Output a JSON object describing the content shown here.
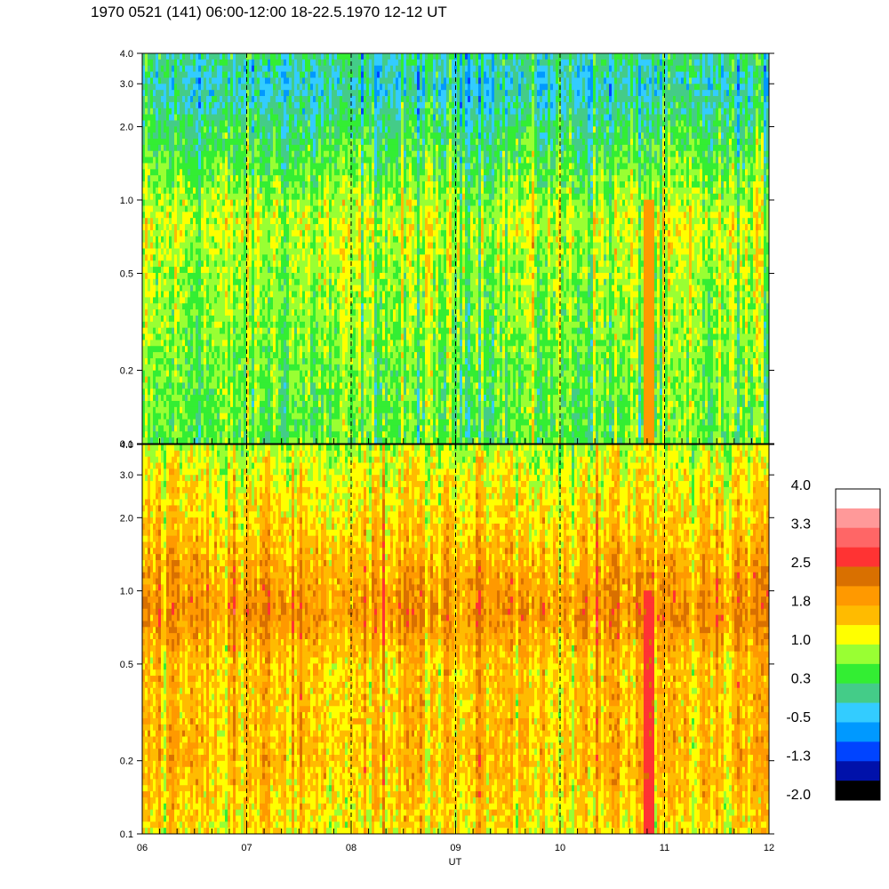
{
  "title": "1970 0521 (141) 06:00-12:00 18-22.5.1970  12-12 UT",
  "chart_data": [
    {
      "type": "heatmap",
      "panel": "upper",
      "x_range": [
        "06",
        "12"
      ],
      "y_scale": "log",
      "ylim": [
        0.1,
        4.0
      ],
      "y_ticks": [
        "0.1",
        "0.2",
        "0.5",
        "1.0",
        "2.0",
        "3.0",
        "4.0"
      ],
      "x_ticks": [
        "06",
        "07",
        "08",
        "09",
        "10",
        "11",
        "12"
      ],
      "xlabel": "",
      "grid": "vertical dashed lines at each hour",
      "profile": [
        {
          "f": 0.1,
          "v": 0.5
        },
        {
          "f": 0.2,
          "v": 0.6
        },
        {
          "f": 0.5,
          "v": 0.8
        },
        {
          "f": 0.8,
          "v": 1.0
        },
        {
          "f": 1.0,
          "v": 0.8
        },
        {
          "f": 2.0,
          "v": 0.2
        },
        {
          "f": 3.0,
          "v": -0.2
        },
        {
          "f": 4.0,
          "v": 0.1
        }
      ],
      "features": [
        {
          "time": "10:50",
          "value": 1.9,
          "note": "orange vertical streak below 1.0"
        }
      ]
    },
    {
      "type": "heatmap",
      "panel": "lower",
      "x_range": [
        "06",
        "12"
      ],
      "y_scale": "log",
      "ylim": [
        0.1,
        4.0
      ],
      "y_ticks": [
        "0.1",
        "0.2",
        "0.5",
        "1.0",
        "2.0",
        "3.0",
        "4.0"
      ],
      "x_ticks": [
        "06",
        "07",
        "08",
        "09",
        "10",
        "11",
        "12"
      ],
      "xlabel": "UT",
      "grid": "vertical dashed lines at each hour",
      "profile": [
        {
          "f": 0.1,
          "v": 1.3
        },
        {
          "f": 0.2,
          "v": 1.6
        },
        {
          "f": 0.5,
          "v": 1.5
        },
        {
          "f": 0.8,
          "v": 2.0
        },
        {
          "f": 1.0,
          "v": 1.9
        },
        {
          "f": 2.0,
          "v": 1.4
        },
        {
          "f": 3.0,
          "v": 1.2
        },
        {
          "f": 4.0,
          "v": 0.9
        }
      ],
      "features": [
        {
          "time": "10:50",
          "value": 2.6,
          "note": "red vertical streak below 0.3"
        }
      ]
    }
  ],
  "colorbar": {
    "labels": [
      "4.0",
      "3.3",
      "2.5",
      "1.8",
      "1.0",
      "0.3",
      "-0.5",
      "-1.3",
      "-2.0"
    ],
    "colors": [
      "#ffffff",
      "#ff9999",
      "#ff6666",
      "#ff3333",
      "#d97000",
      "#ff9900",
      "#ffbb00",
      "#ffff00",
      "#99ff33",
      "#33ee33",
      "#44cc88",
      "#33ccff",
      "#0099ff",
      "#0044ff",
      "#0011aa",
      "#000000"
    ],
    "range": [
      -2.0,
      4.0
    ]
  }
}
